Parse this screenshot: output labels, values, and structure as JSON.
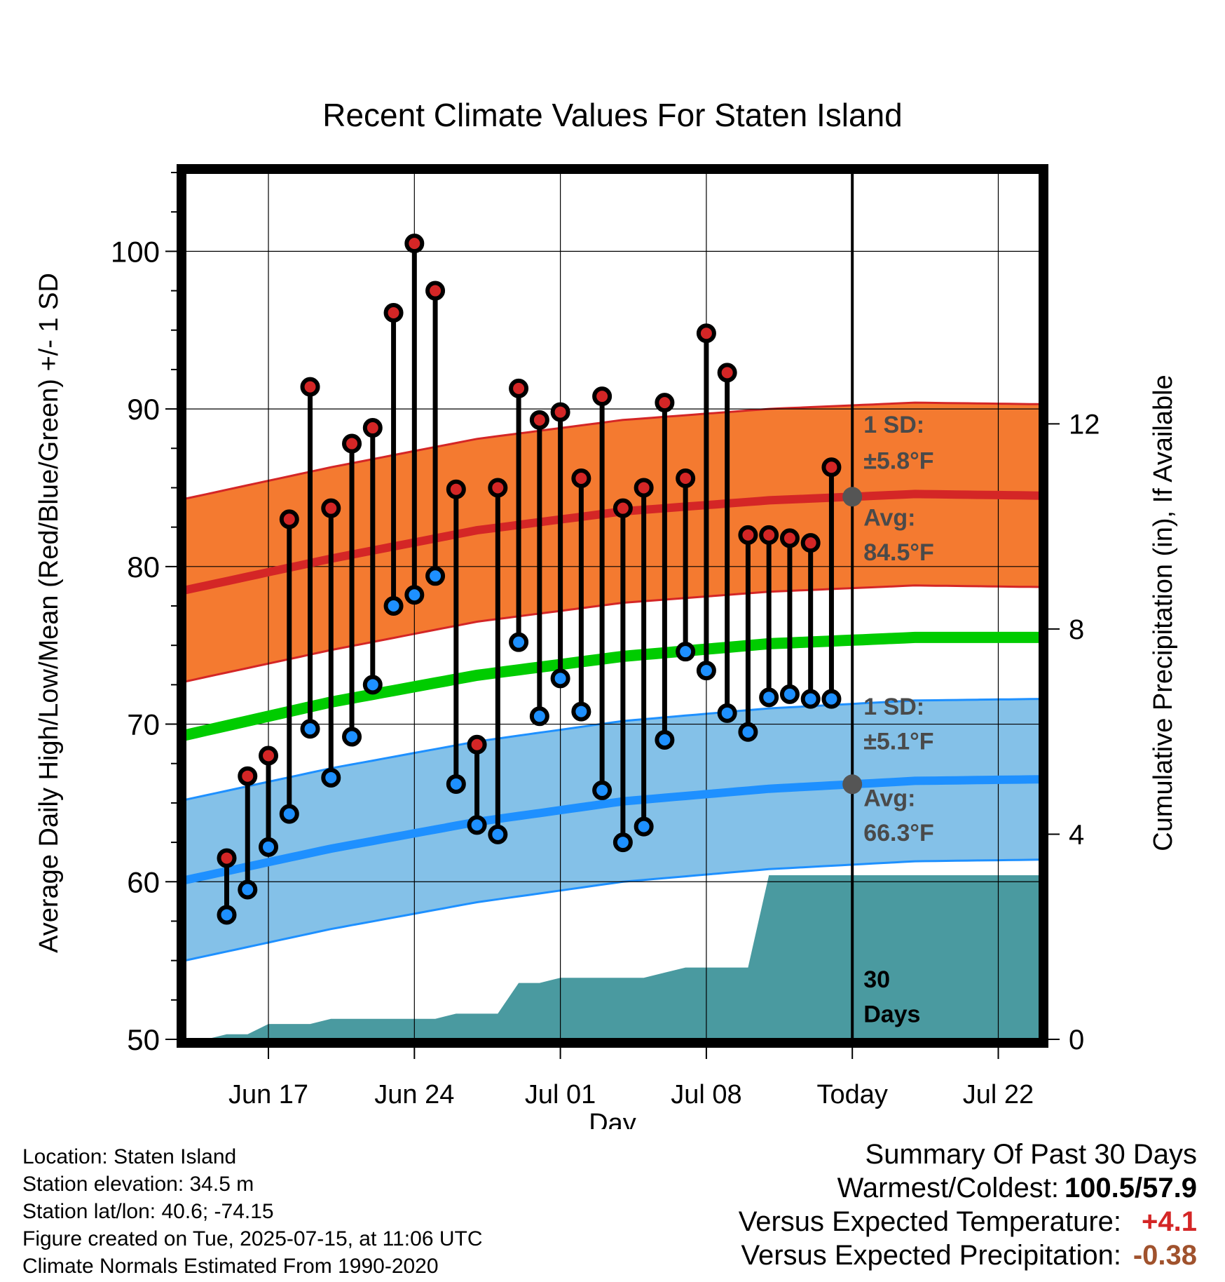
{
  "chart_data": {
    "type": "line",
    "title": "Recent Climate Values For Staten Island",
    "xlabel": "Day",
    "ylabel": "Average Daily High/Low/Mean (Red/Blue/Green) +/- 1 SD",
    "y2label": "Cumulative Precipitation (in), If Available",
    "ylim": [
      50,
      105
    ],
    "y2lim": [
      0,
      16.9
    ],
    "y_ticks": [
      50,
      60,
      70,
      80,
      90,
      100
    ],
    "y2_ticks": [
      0,
      4,
      8,
      12
    ],
    "x_ticks": [
      "Jun 17",
      "Jun 24",
      "Jul 01",
      "Jul 08",
      "Today",
      "Jul 22"
    ],
    "x_range": [
      "Jun 13",
      "Jul 24"
    ],
    "today": "Jul 15",
    "grid": true,
    "dates": [
      "Jun 15",
      "Jun 16",
      "Jun 17",
      "Jun 18",
      "Jun 19",
      "Jun 20",
      "Jun 21",
      "Jun 22",
      "Jun 23",
      "Jun 24",
      "Jun 25",
      "Jun 26",
      "Jun 27",
      "Jun 28",
      "Jun 29",
      "Jun 30",
      "Jul 01",
      "Jul 02",
      "Jul 03",
      "Jul 04",
      "Jul 05",
      "Jul 06",
      "Jul 07",
      "Jul 08",
      "Jul 09",
      "Jul 10",
      "Jul 11",
      "Jul 12",
      "Jul 13",
      "Jul 14"
    ],
    "series": [
      {
        "name": "High",
        "color": "#d42626",
        "values": [
          61.5,
          66.7,
          68.0,
          83.0,
          91.4,
          83.7,
          87.8,
          88.8,
          96.1,
          100.5,
          97.5,
          84.9,
          68.7,
          85.0,
          91.3,
          89.3,
          89.8,
          85.6,
          90.8,
          83.7,
          85.0,
          90.4,
          85.6,
          94.8,
          92.3,
          82.0,
          82.0,
          81.8,
          81.5,
          86.3
        ]
      },
      {
        "name": "Low",
        "color": "#1e90ff",
        "values": [
          57.9,
          59.5,
          62.2,
          64.3,
          69.7,
          66.6,
          69.2,
          72.5,
          77.5,
          78.2,
          79.4,
          66.2,
          63.6,
          63.0,
          75.2,
          70.5,
          72.9,
          70.8,
          65.8,
          62.5,
          63.5,
          69.0,
          74.6,
          73.4,
          70.7,
          69.5,
          71.7,
          71.9,
          71.6,
          71.6
        ]
      }
    ],
    "normals": {
      "dates": [
        "Jun 13",
        "Jun 20",
        "Jun 27",
        "Jul 04",
        "Jul 11",
        "Jul 18",
        "Jul 24"
      ],
      "avg_high": [
        78.5,
        80.5,
        82.3,
        83.5,
        84.2,
        84.6,
        84.5
      ],
      "avg_low": [
        60.1,
        62.1,
        63.8,
        65.1,
        65.9,
        66.4,
        66.5
      ],
      "avg_mean": [
        69.3,
        71.4,
        73.1,
        74.3,
        75.1,
        75.5,
        75.5
      ],
      "sd_high": 5.8,
      "sd_low": 5.1
    },
    "cumulative_precip": [
      0.0,
      0.0,
      0.1,
      0.1,
      0.3,
      0.3,
      0.3,
      0.4,
      0.4,
      0.4,
      0.4,
      0.4,
      0.4,
      0.5,
      0.5,
      0.5,
      1.1,
      1.1,
      1.2,
      1.2,
      1.2,
      1.2,
      1.2,
      1.3,
      1.4,
      1.4,
      1.4,
      1.4,
      3.2,
      3.2,
      3.2
    ],
    "annotations": {
      "high_sd_label": "1 SD:",
      "high_sd_value": "±5.8°F",
      "high_avg_label": "Avg:",
      "high_avg_value": "84.5°F",
      "low_sd_label": "1 SD:",
      "low_sd_value": "±5.1°F",
      "low_avg_label": "Avg:",
      "low_avg_value": "66.3°F",
      "period_line1": "30",
      "period_line2": "Days"
    },
    "colors": {
      "high_band": "#f47a30",
      "high_line": "#d42626",
      "low_band": "#84c1e8",
      "low_line": "#1e90ff",
      "mean_line": "#00cc00",
      "precip": "#4a9aa0",
      "today_marker": "#555555"
    }
  },
  "info": {
    "location": "Location: Staten Island",
    "elevation": "Station elevation: 34.5 m",
    "latlon": "Station lat/lon: 40.6; -74.15",
    "created": "Figure created on Tue, 2025-07-15, at 11:06 UTC",
    "normals": "Climate Normals Estimated From 1990-2020"
  },
  "summary": {
    "title": "Summary Of Past 30 Days",
    "warmest_label": "Warmest/Coldest:",
    "warmest_value": "100.5/57.9",
    "temp_label": "Versus Expected Temperature:",
    "temp_value": "+4.1",
    "precip_label": "Versus Expected Precipitation:",
    "precip_value": "-0.38"
  }
}
